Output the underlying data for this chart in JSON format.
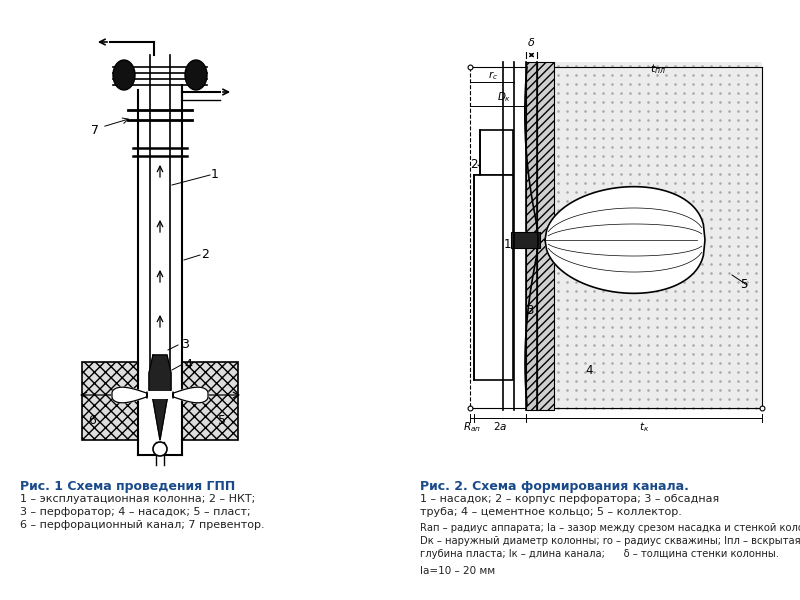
{
  "fig_width": 8.0,
  "fig_height": 6.0,
  "bg_color": "#ffffff",
  "text_color": "#1a4a8a",
  "line_color": "#000000",
  "caption1_title": "Рис. 1 Схема проведения ГПП",
  "caption1_lines": [
    "1 – эксплуатационная колонна; 2 – НКТ;",
    "3 – перфоратор; 4 – насадок; 5 – пласт;",
    "6 – перфорационный канал; 7 превентор."
  ],
  "caption2_title": "Рис. 2. Схема формирования канала.",
  "caption2_lines": [
    "1 – насадок; 2 – корпус перфоратора; 3 – обсадная",
    "труба; 4 – цементное кольцо; 5 – коллектор."
  ],
  "caption3_lines": [
    "Rап – радиус аппарата; lа – зазор между срезом насадка и стенкой колонны;",
    "Dк – наружный диаметр колонны; rо – радиус скважины; lпл – вскрытая",
    "глубина пласта; lк – длина канала;      δ – толщина стенки колонны."
  ],
  "caption4_line": "lа=10 – 20 мм"
}
